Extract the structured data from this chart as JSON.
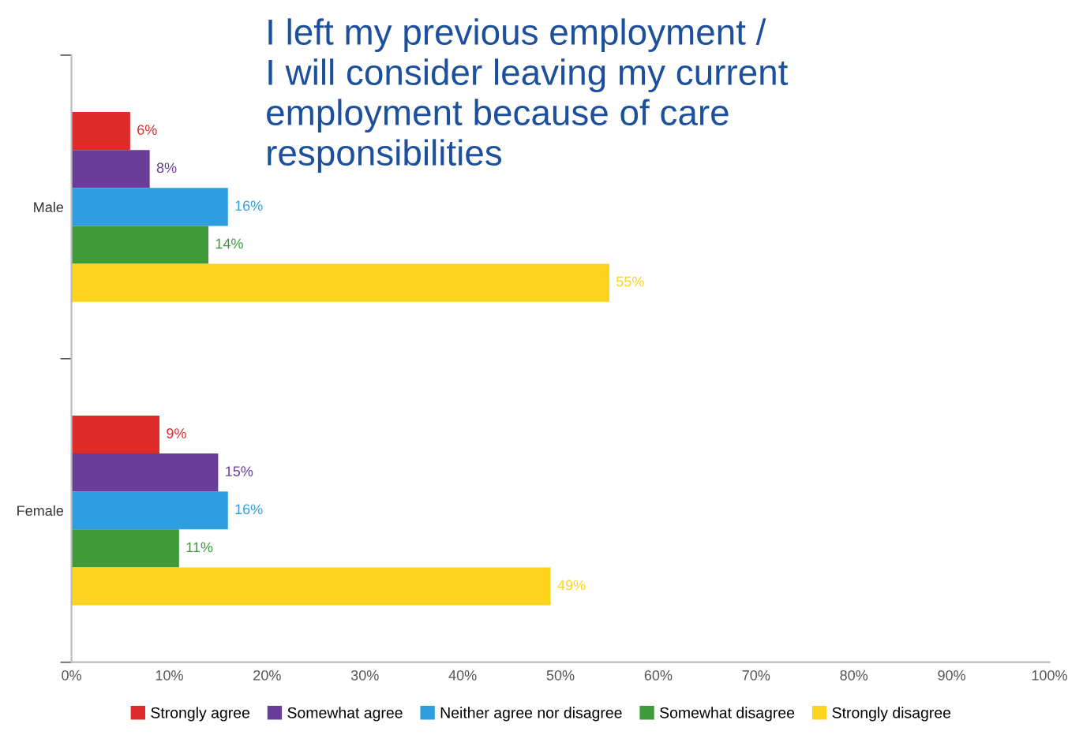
{
  "chart_data": {
    "type": "bar",
    "orientation": "horizontal",
    "title": "I left my previous employment /\nI will consider leaving my current\nemployment because of care\nresponsibilities",
    "categories": [
      "Male",
      "Female"
    ],
    "series": [
      {
        "name": "Strongly agree",
        "color": "#e02b2b",
        "values": [
          6,
          9
        ],
        "value_labels": [
          "6%",
          "9%"
        ]
      },
      {
        "name": "Somewhat agree",
        "color": "#6a3d9a",
        "values": [
          8,
          15
        ],
        "value_labels": [
          "8%",
          "15%"
        ]
      },
      {
        "name": "Neither agree nor disagree",
        "color": "#2f9ee0",
        "values": [
          16,
          16
        ],
        "value_labels": [
          "16%",
          "16%"
        ]
      },
      {
        "name": "Somewhat disagree",
        "color": "#3f9b3a",
        "values": [
          14,
          11
        ],
        "value_labels": [
          "14%",
          "11%"
        ]
      },
      {
        "name": "Strongly disagree",
        "color": "#fdd31d",
        "values": [
          55,
          49
        ],
        "value_labels": [
          "55%",
          "49%"
        ]
      }
    ],
    "xlim": [
      0,
      100
    ],
    "xticks": [
      {
        "value": 0,
        "label": "0%"
      },
      {
        "value": 10,
        "label": "10%"
      },
      {
        "value": 20,
        "label": "20%"
      },
      {
        "value": 30,
        "label": "30%"
      },
      {
        "value": 40,
        "label": "40%"
      },
      {
        "value": 50,
        "label": "50%"
      },
      {
        "value": 60,
        "label": "60%"
      },
      {
        "value": 70,
        "label": "70%"
      },
      {
        "value": 80,
        "label": "80%"
      },
      {
        "value": 90,
        "label": "90%"
      },
      {
        "value": 100,
        "label": "100%"
      }
    ],
    "grid": false,
    "legend": "bottom"
  }
}
